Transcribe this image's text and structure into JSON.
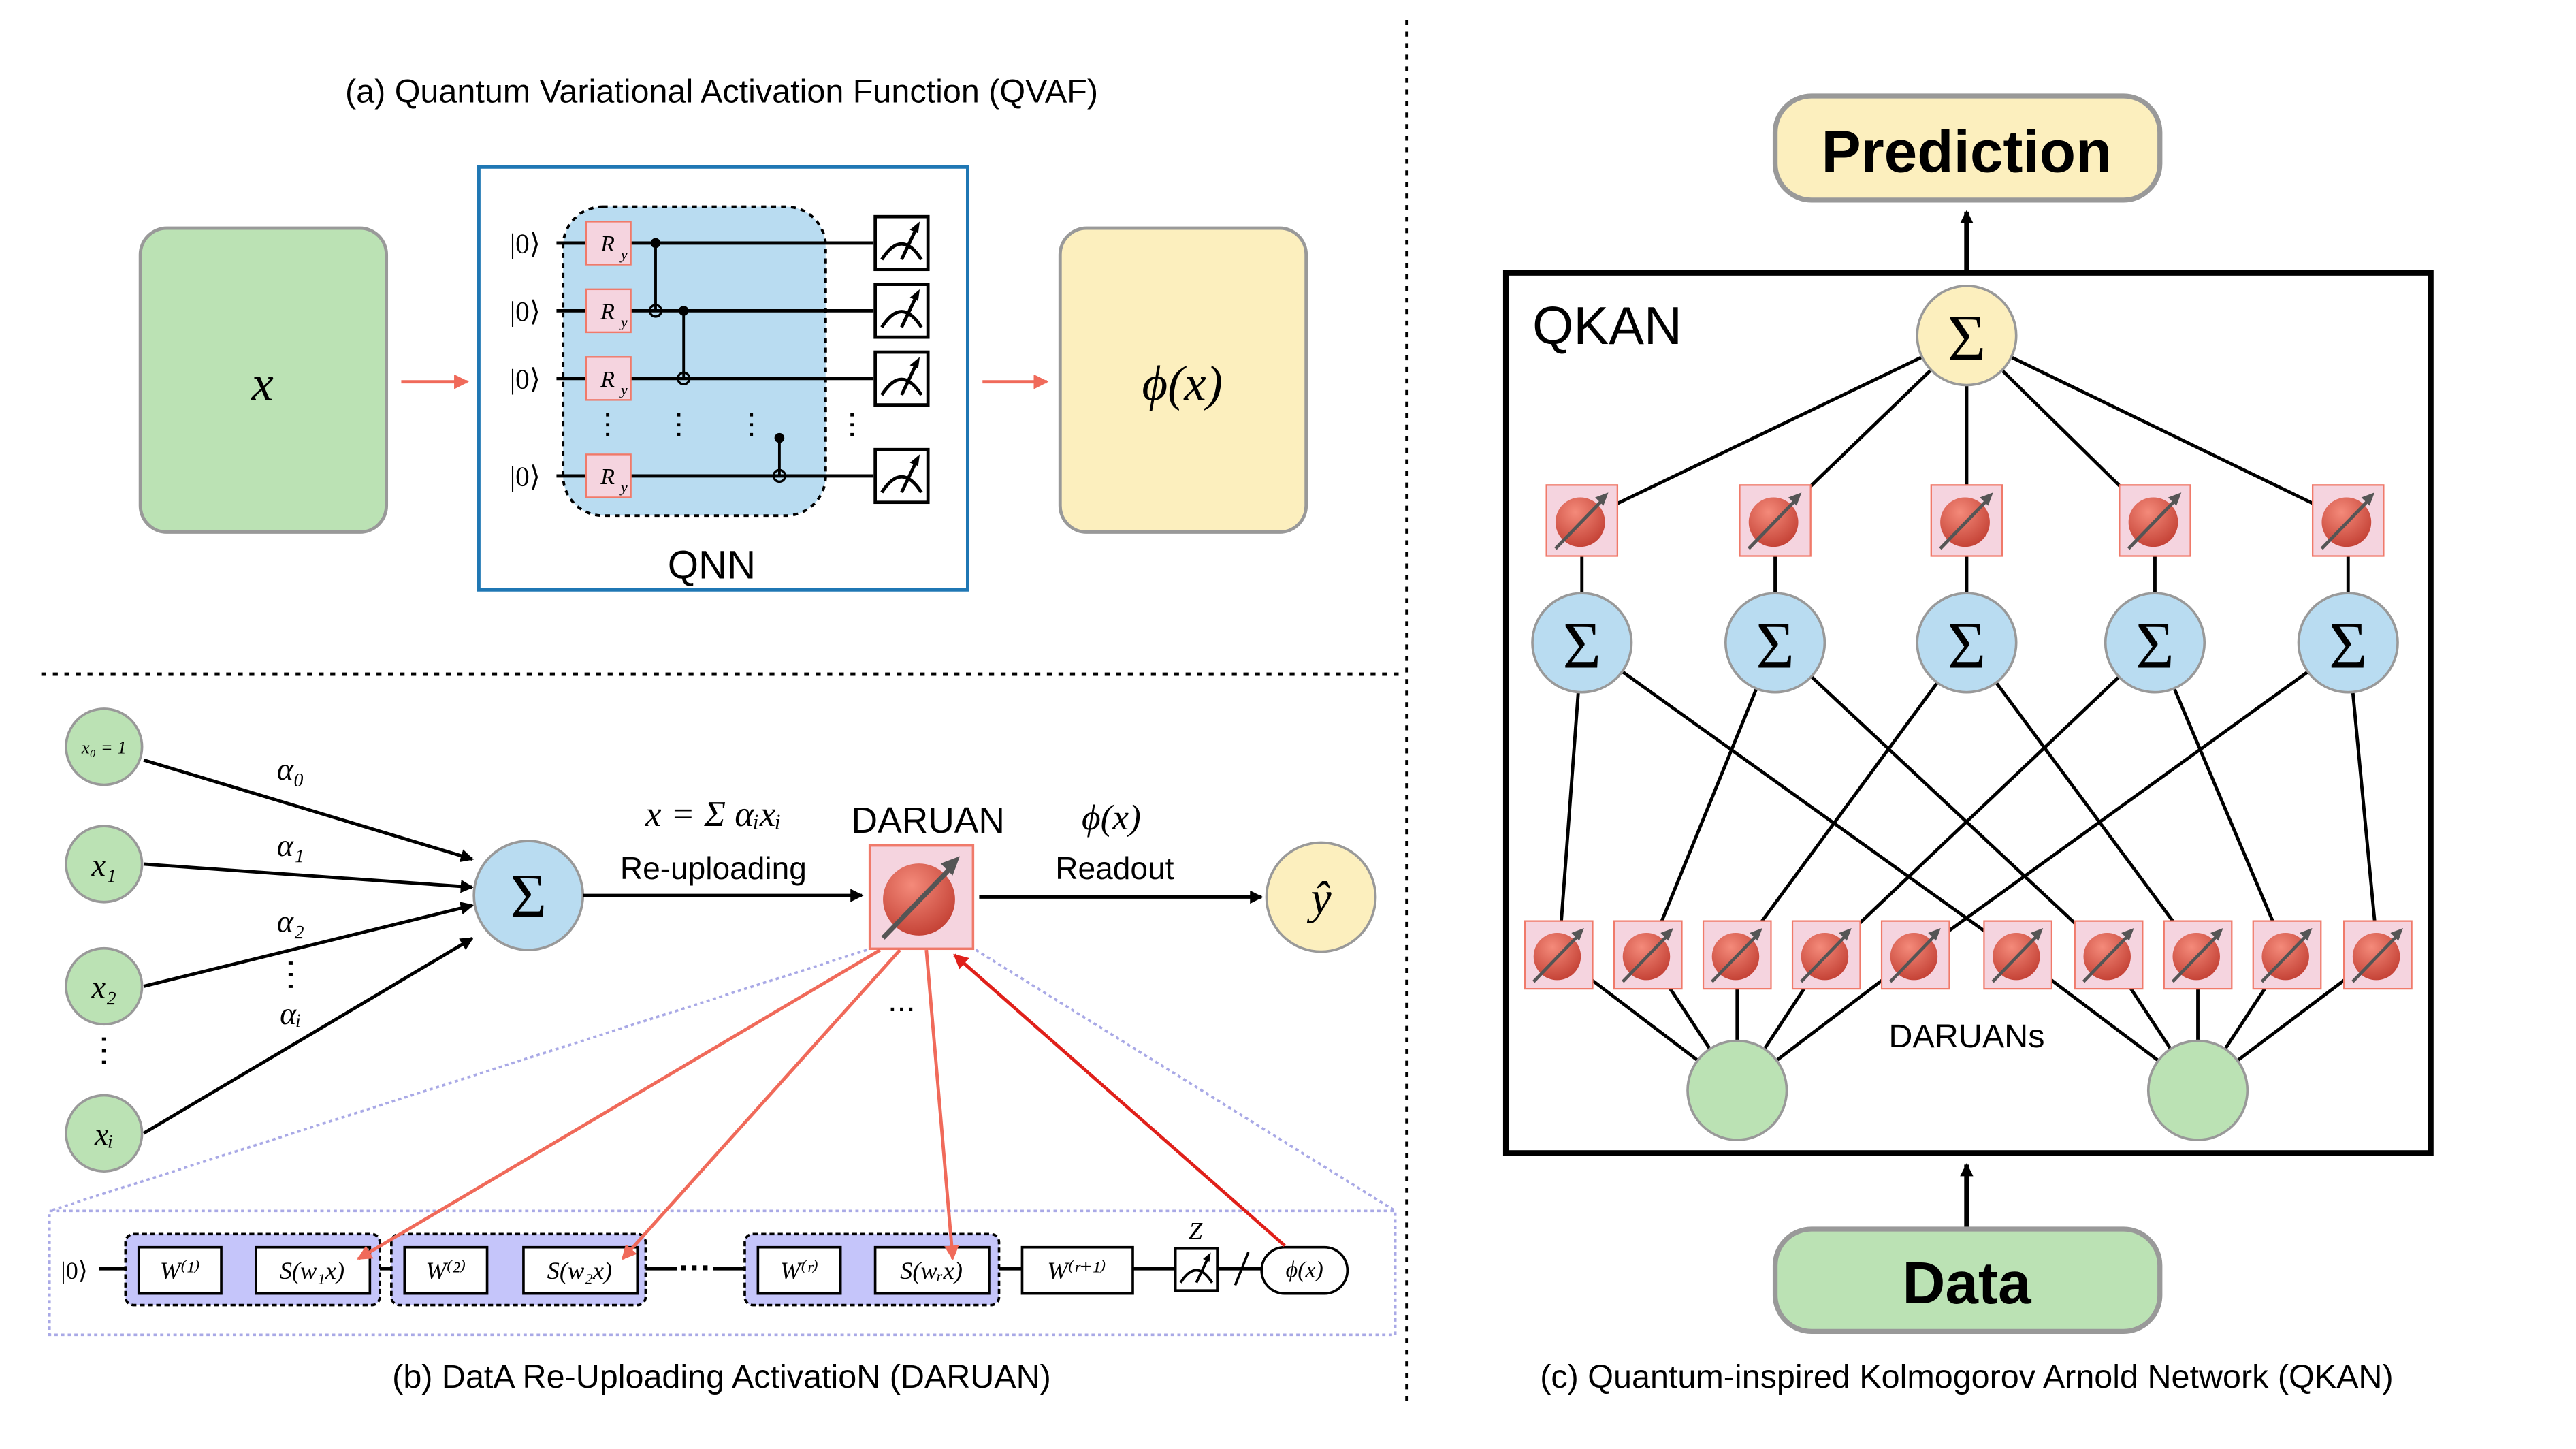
{
  "panel_a": {
    "caption": "(a) Quantum Variational Activation Function (QVAF)",
    "input_label": "x",
    "output_label": "ϕ(x)",
    "qnn_label": "QNN",
    "ket": "|0⟩",
    "gate": "R",
    "gate_sub": "y",
    "colors": {
      "input": "#bbe2b4",
      "output": "#fcefbe",
      "qnn_border": "#1f77b4",
      "qnn_fill": "#b9dcf1",
      "gate_fill": "#f5d4df",
      "arrow": "#f06a5a"
    }
  },
  "panel_b": {
    "caption": "(b) DatA Re-Uploading ActivatioN (DARUAN)",
    "inputs": [
      "x₀ = 1",
      "x₁",
      "x₂",
      "xᵢ"
    ],
    "weights": [
      "α₀",
      "α₁",
      "α₂",
      "αᵢ"
    ],
    "sum_symbol": "Σ",
    "formula": "x = Σ αᵢxᵢ",
    "reuploading_label": "Re-uploading",
    "daruan_label": "DARUAN",
    "readout_symbol": "ϕ(x)",
    "readout_label": "Readout",
    "output_symbol": "ŷ",
    "ellipsis": "...",
    "circuit": {
      "ket": "|0⟩",
      "blocks": [
        {
          "w": "W⁽¹⁾",
          "s": "S(w₁x)"
        },
        {
          "w": "W⁽²⁾",
          "s": "S(w₂x)"
        },
        {
          "w": "W⁽ʳ⁾",
          "s": "S(wᵣx)"
        }
      ],
      "dots": "···",
      "final_w": "W⁽ʳ⁺¹⁾",
      "measure_label": "Z",
      "output": "ϕ(x)"
    },
    "colors": {
      "block_fill": "#c5c5fa",
      "frame": "#a9a9e6",
      "arrow": "#f06a5a"
    }
  },
  "panel_c": {
    "caption": "(c) Quantum-inspired Kolmogorov Arnold Network (QKAN)",
    "prediction_label": "Prediction",
    "data_label": "Data",
    "network_label": "QKAN",
    "sum_symbol": "Σ",
    "daruans_label": "DARUANs",
    "colors": {
      "prediction": "#fcefbe",
      "data": "#bbe2b4",
      "sum": "#b9dcf1",
      "top_sum": "#fcefbe",
      "daruan_fill": "#f5d4df",
      "ball": "#d9483b"
    }
  }
}
